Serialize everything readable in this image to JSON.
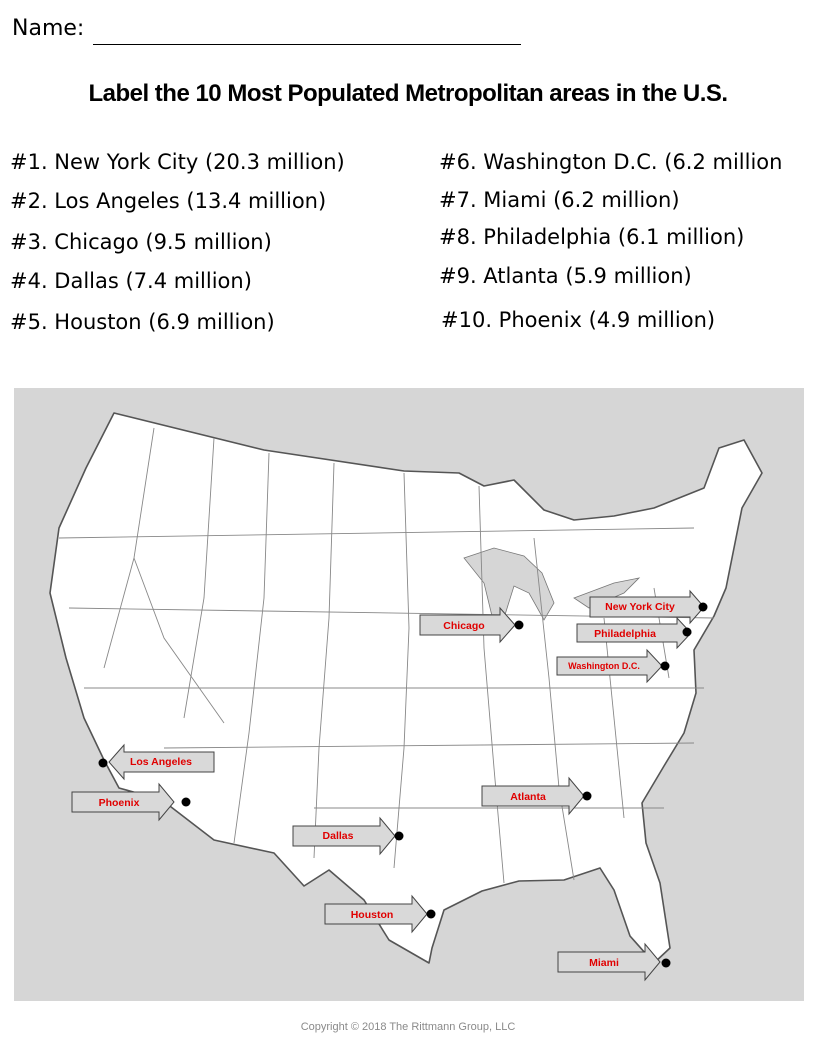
{
  "header": {
    "name_label": "Name:",
    "title": "Label the 10 Most Populated Metropolitan areas in the U.S."
  },
  "rankings": [
    {
      "text": "#1.  New York City (20.3 million)"
    },
    {
      "text": "#2.  Los Angeles (13.4 million)"
    },
    {
      "text": "#3.  Chicago (9.5 million)"
    },
    {
      "text": "#4.  Dallas (7.4 million)"
    },
    {
      "text": "#5.  Houston (6.9 million)"
    },
    {
      "text": "#6.  Washington D.C. (6.2 million"
    },
    {
      "text": "#7.  Miami (6.2 million)"
    },
    {
      "text": "#8.  Philadelphia (6.1 million)"
    },
    {
      "text": "#9.  Atlanta  (5.9 million)"
    },
    {
      "text": "#10. Phoenix (4.9 million)"
    }
  ],
  "map_labels": {
    "new_york_city": "New York City",
    "philadelphia": "Philadelphia",
    "washington_dc": "Washington D.C.",
    "chicago": "Chicago",
    "los_angeles": "Los Angeles",
    "phoenix": "Phoenix",
    "dallas": "Dallas",
    "houston": "Houston",
    "atlanta": "Atlanta",
    "miami": "Miami"
  },
  "colors": {
    "label_text": "#e00000",
    "arrow_fill": "#d9d9d9",
    "land": "#ffffff",
    "outside": "#d6d6d6"
  },
  "footer": {
    "copyright": "Copyright © 2018 The Rittmann Group, LLC"
  }
}
